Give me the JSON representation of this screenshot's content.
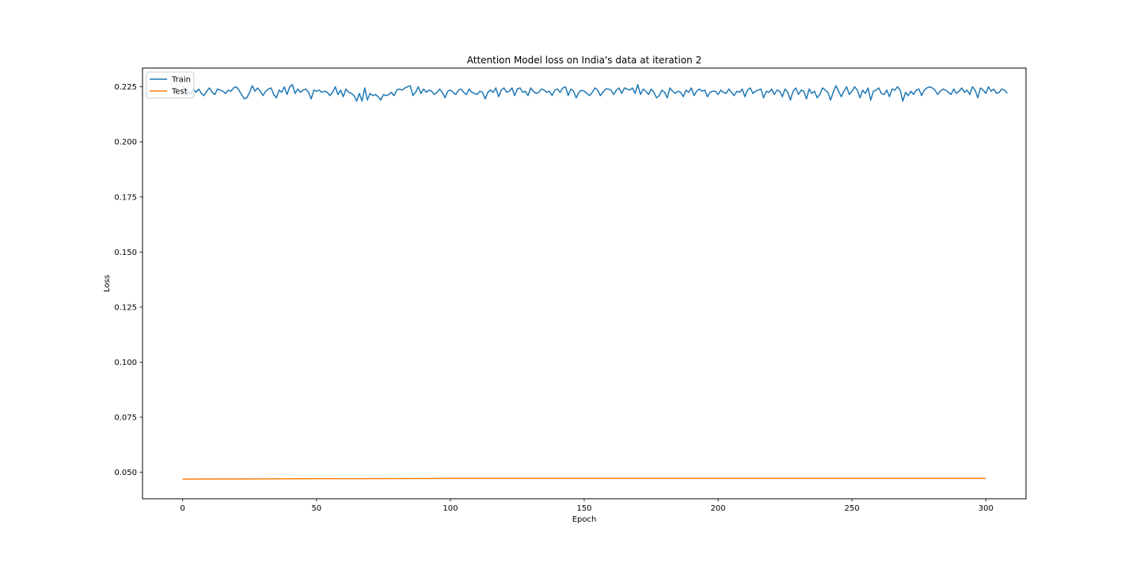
{
  "chart_data": {
    "type": "line",
    "title": "Attention Model loss on India's data at iteration 2",
    "xlabel": "Epoch",
    "ylabel": "Loss",
    "xlim": [
      -15,
      315
    ],
    "ylim": [
      0.038,
      0.2335
    ],
    "xticks": [
      0,
      50,
      100,
      150,
      200,
      250,
      300
    ],
    "xtick_labels": [
      "0",
      "50",
      "100",
      "150",
      "200",
      "250",
      "300"
    ],
    "yticks": [
      0.05,
      0.075,
      0.1,
      0.125,
      0.15,
      0.175,
      0.2,
      0.225
    ],
    "ytick_labels": [
      "0.050",
      "0.075",
      "0.100",
      "0.125",
      "0.150",
      "0.175",
      "0.200",
      "0.225"
    ],
    "grid": false,
    "legend_position": "upper-left",
    "series": [
      {
        "name": "Train",
        "color": "#1f77b4",
        "x_start": 0,
        "x_step": 1,
        "values": [
          0.2255,
          0.2235,
          0.223,
          0.2215,
          0.224,
          0.2225,
          0.224,
          0.222,
          0.221,
          0.223,
          0.2245,
          0.2225,
          0.2215,
          0.224,
          0.2235,
          0.223,
          0.222,
          0.2235,
          0.223,
          0.2245,
          0.225,
          0.2235,
          0.2215,
          0.2195,
          0.22,
          0.2225,
          0.2255,
          0.223,
          0.2245,
          0.223,
          0.221,
          0.223,
          0.224,
          0.2245,
          0.2215,
          0.22,
          0.2235,
          0.2225,
          0.225,
          0.2215,
          0.225,
          0.226,
          0.222,
          0.224,
          0.2225,
          0.2235,
          0.224,
          0.2225,
          0.2195,
          0.2235,
          0.223,
          0.2235,
          0.2225,
          0.223,
          0.2225,
          0.221,
          0.2225,
          0.225,
          0.2215,
          0.2235,
          0.2205,
          0.224,
          0.2225,
          0.222,
          0.221,
          0.2185,
          0.222,
          0.2185,
          0.2245,
          0.219,
          0.222,
          0.221,
          0.2215,
          0.2205,
          0.219,
          0.2215,
          0.221,
          0.2215,
          0.2225,
          0.221,
          0.2235,
          0.224,
          0.2235,
          0.2245,
          0.225,
          0.2255,
          0.221,
          0.2225,
          0.225,
          0.222,
          0.224,
          0.2225,
          0.2235,
          0.223,
          0.2215,
          0.2225,
          0.224,
          0.2225,
          0.22,
          0.223,
          0.2235,
          0.2225,
          0.2215,
          0.2235,
          0.224,
          0.2225,
          0.2215,
          0.224,
          0.2225,
          0.222,
          0.2215,
          0.223,
          0.2225,
          0.2195,
          0.2225,
          0.2235,
          0.2225,
          0.2245,
          0.2205,
          0.2235,
          0.2245,
          0.2225,
          0.223,
          0.2245,
          0.221,
          0.224,
          0.2245,
          0.2225,
          0.223,
          0.221,
          0.2245,
          0.223,
          0.222,
          0.2225,
          0.224,
          0.2235,
          0.2225,
          0.223,
          0.221,
          0.2235,
          0.224,
          0.2225,
          0.2245,
          0.225,
          0.221,
          0.224,
          0.223,
          0.22,
          0.2225,
          0.2235,
          0.223,
          0.222,
          0.221,
          0.2225,
          0.2245,
          0.2235,
          0.221,
          0.2225,
          0.224,
          0.224,
          0.2235,
          0.2215,
          0.2235,
          0.2245,
          0.222,
          0.2245,
          0.224,
          0.2235,
          0.2245,
          0.222,
          0.226,
          0.2215,
          0.224,
          0.223,
          0.2215,
          0.224,
          0.2225,
          0.22,
          0.221,
          0.2235,
          0.2225,
          0.22,
          0.2245,
          0.223,
          0.222,
          0.223,
          0.2225,
          0.2205,
          0.2235,
          0.2225,
          0.2245,
          0.221,
          0.223,
          0.224,
          0.223,
          0.2235,
          0.2205,
          0.2225,
          0.223,
          0.223,
          0.2215,
          0.2235,
          0.2225,
          0.222,
          0.224,
          0.2225,
          0.221,
          0.223,
          0.2225,
          0.224,
          0.2205,
          0.2235,
          0.2245,
          0.222,
          0.223,
          0.2235,
          0.224,
          0.22,
          0.223,
          0.2225,
          0.224,
          0.2215,
          0.2235,
          0.223,
          0.2205,
          0.224,
          0.2225,
          0.219,
          0.223,
          0.2245,
          0.2215,
          0.2235,
          0.223,
          0.2195,
          0.224,
          0.222,
          0.223,
          0.22,
          0.2215,
          0.2245,
          0.2235,
          0.2225,
          0.219,
          0.2225,
          0.2255,
          0.223,
          0.2205,
          0.223,
          0.225,
          0.2215,
          0.223,
          0.225,
          0.2235,
          0.22,
          0.2235,
          0.222,
          0.2245,
          0.219,
          0.223,
          0.2235,
          0.2245,
          0.222,
          0.2215,
          0.2235,
          0.2205,
          0.224,
          0.2235,
          0.225,
          0.2235,
          0.2185,
          0.2225,
          0.221,
          0.223,
          0.2215,
          0.2235,
          0.224,
          0.221,
          0.2235,
          0.2245,
          0.225,
          0.2245,
          0.2235,
          0.2215,
          0.223,
          0.224,
          0.2235,
          0.2225,
          0.2215,
          0.224,
          0.222,
          0.223,
          0.2245,
          0.2225,
          0.2235,
          0.2215,
          0.225,
          0.2235,
          0.22,
          0.2245,
          0.2235,
          0.222,
          0.225,
          0.223,
          0.224,
          0.222,
          0.2225,
          0.224,
          0.2235,
          0.222
        ]
      },
      {
        "name": "Test",
        "color": "#ff7f0e",
        "x": [
          0,
          10,
          50,
          100,
          150,
          200,
          250,
          300
        ],
        "values": [
          0.0469,
          0.047,
          0.0471,
          0.0472,
          0.0472,
          0.0472,
          0.0472,
          0.0472
        ]
      }
    ]
  }
}
